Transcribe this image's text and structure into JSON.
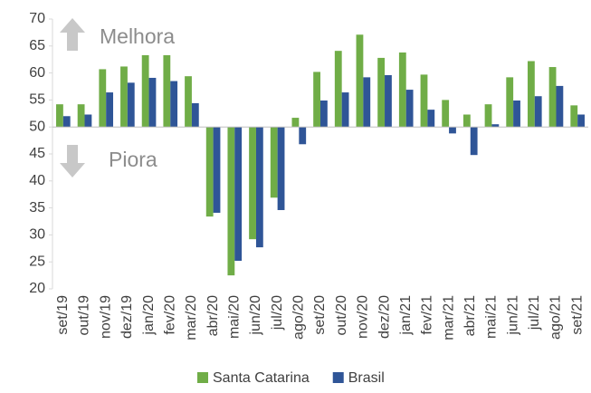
{
  "chart_data": {
    "type": "bar",
    "categories": [
      "set/19",
      "out/19",
      "nov/19",
      "dez/19",
      "jan/20",
      "fev/20",
      "mar/20",
      "abr/20",
      "mai/20",
      "jun/20",
      "jul/20",
      "ago/20",
      "set/20",
      "out/20",
      "nov/20",
      "dez/20",
      "jan/21",
      "fev/21",
      "mar/21",
      "abr/21",
      "mai/21",
      "jun/21",
      "jul/21",
      "ago/21",
      "set/21"
    ],
    "series": [
      {
        "name": "Santa Catarina",
        "color": "#70ad47",
        "values": [
          54.2,
          54.2,
          60.7,
          61.2,
          63.3,
          63.3,
          59.4,
          33.4,
          22.5,
          29.2,
          36.9,
          51.7,
          60.2,
          64.1,
          67.1,
          62.8,
          63.8,
          59.7,
          55.0,
          52.3,
          54.2,
          59.2,
          62.2,
          61.1,
          54.0
        ]
      },
      {
        "name": "Brasil",
        "color": "#2f5597",
        "values": [
          52.0,
          52.3,
          56.4,
          58.2,
          59.1,
          58.5,
          54.4,
          34.1,
          25.2,
          27.7,
          34.6,
          46.8,
          54.9,
          56.4,
          59.2,
          59.6,
          56.9,
          53.2,
          48.8,
          44.8,
          50.5,
          54.9,
          55.7,
          57.6,
          52.3
        ]
      }
    ],
    "baseline": 50,
    "ylim": [
      20,
      70
    ],
    "yticks": [
      20,
      25,
      30,
      35,
      40,
      45,
      50,
      55,
      60,
      65,
      70
    ],
    "grid": false,
    "legend": "bottom",
    "annotations": [
      "Melhora",
      "Piora"
    ]
  }
}
